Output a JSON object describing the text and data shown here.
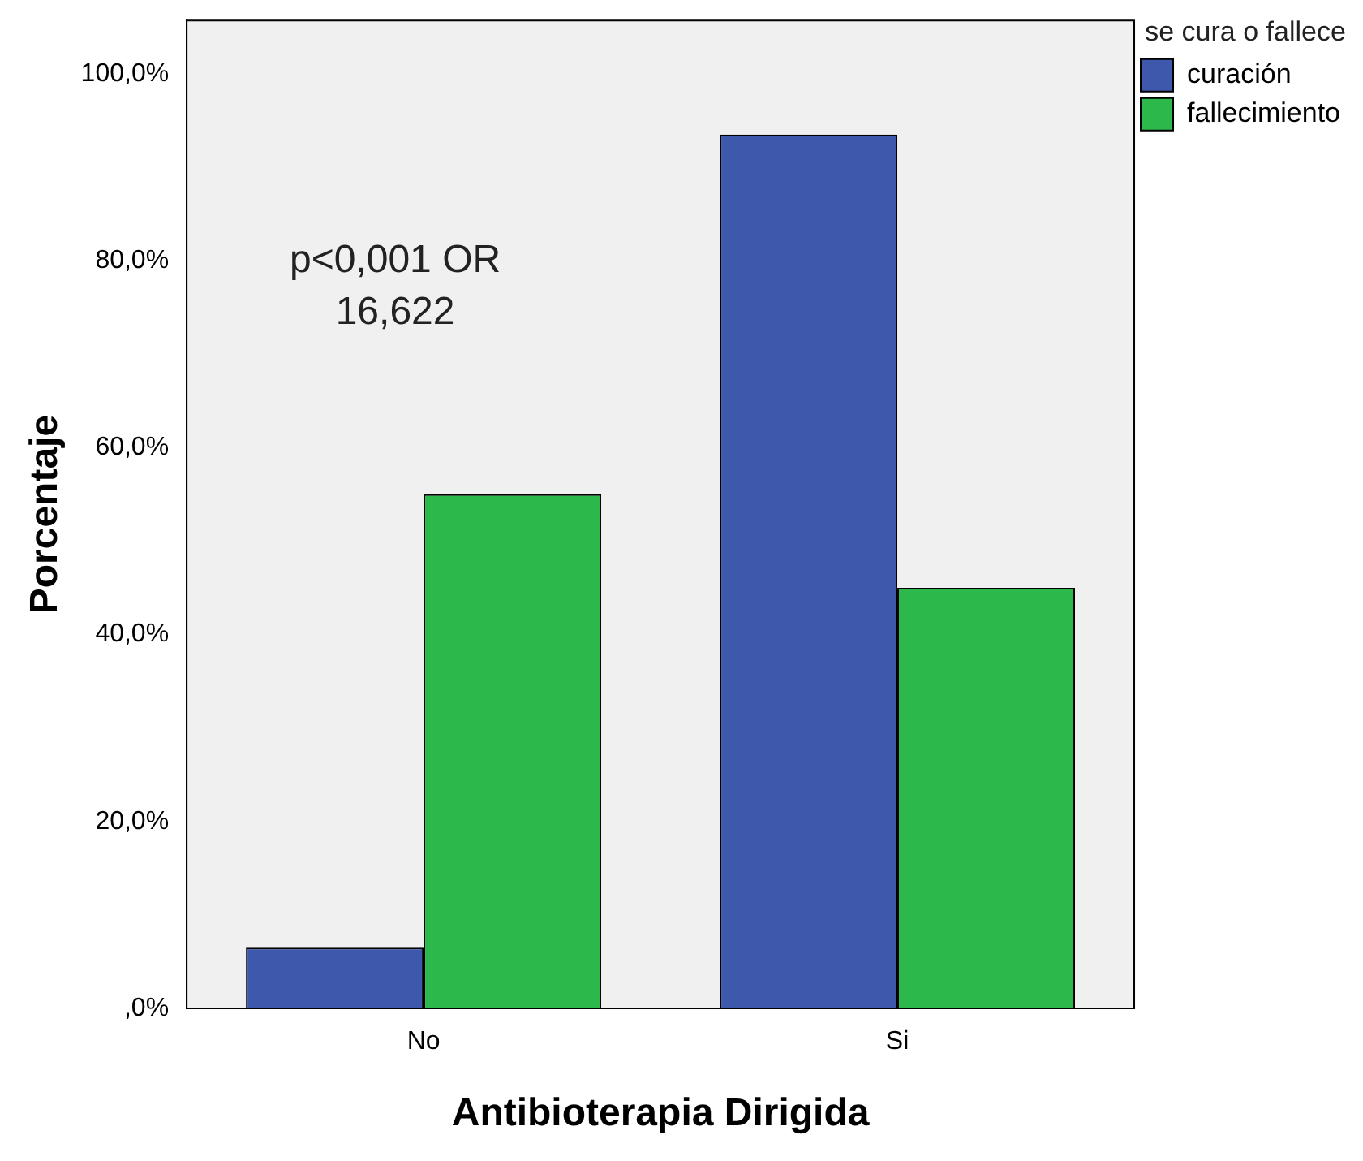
{
  "chart_data": {
    "type": "bar",
    "xlabel": "Antibioterapia Dirigida",
    "ylabel": "Porcentaje",
    "legend_title": "se cura o fallece",
    "categories": [
      "No",
      "Si"
    ],
    "series": [
      {
        "name": "curación",
        "color": "#3e58ac",
        "values": [
          6.5,
          93.5
        ]
      },
      {
        "name": "fallecimiento",
        "color": "#2db84b",
        "values": [
          55,
          45
        ]
      }
    ],
    "ylim": [
      0,
      105.7
    ],
    "yticks": [
      {
        "value": 0,
        "label": ",0%"
      },
      {
        "value": 20,
        "label": "20,0%"
      },
      {
        "value": 40,
        "label": "40,0%"
      },
      {
        "value": 60,
        "label": "60,0%"
      },
      {
        "value": 80,
        "label": "80,0%"
      },
      {
        "value": 100,
        "label": "100,0%"
      }
    ],
    "grid": false,
    "legend": "top right",
    "annotations": [
      "p<0,001 OR 16,622"
    ]
  }
}
